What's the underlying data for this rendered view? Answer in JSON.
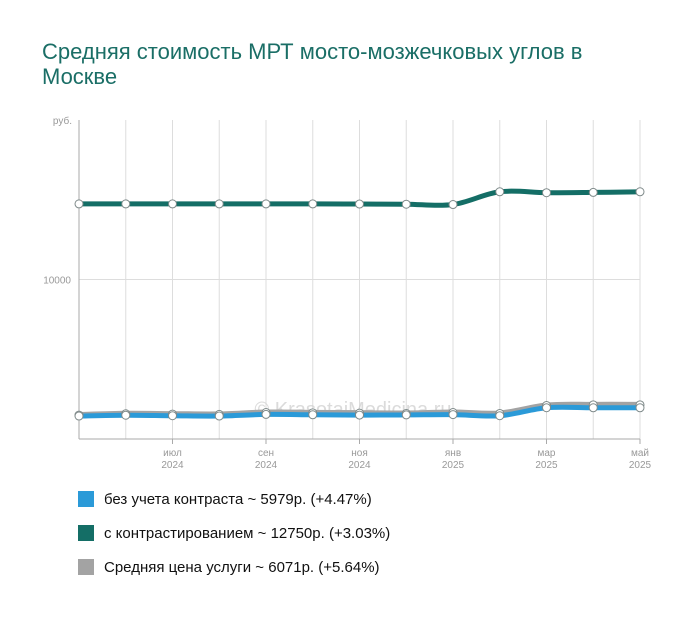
{
  "title": "Средняя стоимость МРТ мосто-мозжечковых углов в Москве",
  "watermark": "© KrasotaiMedicina.ru",
  "chart_data": {
    "type": "line",
    "y_unit": "руб.",
    "y_tick_labels": [
      {
        "value": 10000,
        "label": "10000"
      }
    ],
    "ylim": [
      5000,
      15000
    ],
    "grid": true,
    "legend_position": "bottom",
    "x": [
      "2024-05",
      "2024-06",
      "2024-07",
      "2024-08",
      "2024-09",
      "2024-10",
      "2024-11",
      "2024-12",
      "2025-01",
      "2025-02",
      "2025-03",
      "2025-04",
      "2025-05"
    ],
    "x_tick_labels": [
      {
        "x": "2024-07",
        "label": "июл",
        "year": "2024"
      },
      {
        "x": "2024-09",
        "label": "сен",
        "year": "2024"
      },
      {
        "x": "2024-11",
        "label": "ноя",
        "year": "2024"
      },
      {
        "x": "2025-01",
        "label": "янв",
        "year": "2025"
      },
      {
        "x": "2025-03",
        "label": "мар",
        "year": "2025"
      },
      {
        "x": "2025-05",
        "label": "май",
        "year": "2025"
      }
    ],
    "series": [
      {
        "name": "без учета контраста",
        "legend": "без учета контраста ~ 5979р. (+4.47%)",
        "color": "#2b9ad8",
        "values": [
          5720,
          5745,
          5730,
          5720,
          5770,
          5760,
          5750,
          5755,
          5765,
          5730,
          5980,
          5979,
          5979
        ]
      },
      {
        "name": "с контрастированием",
        "legend": "с контрастированием ~ 12750р. (+3.03%)",
        "color": "#146e66",
        "values": [
          12370,
          12370,
          12370,
          12370,
          12370,
          12370,
          12365,
          12360,
          12350,
          12750,
          12720,
          12730,
          12750
        ]
      },
      {
        "name": "Средняя цена услуги",
        "legend": "Средняя цена услуги ~ 6071р. (+5.64%)",
        "color": "#a3a3a3",
        "values": [
          5750,
          5790,
          5780,
          5770,
          5830,
          5820,
          5810,
          5800,
          5830,
          5800,
          6050,
          6071,
          6071
        ]
      }
    ]
  }
}
